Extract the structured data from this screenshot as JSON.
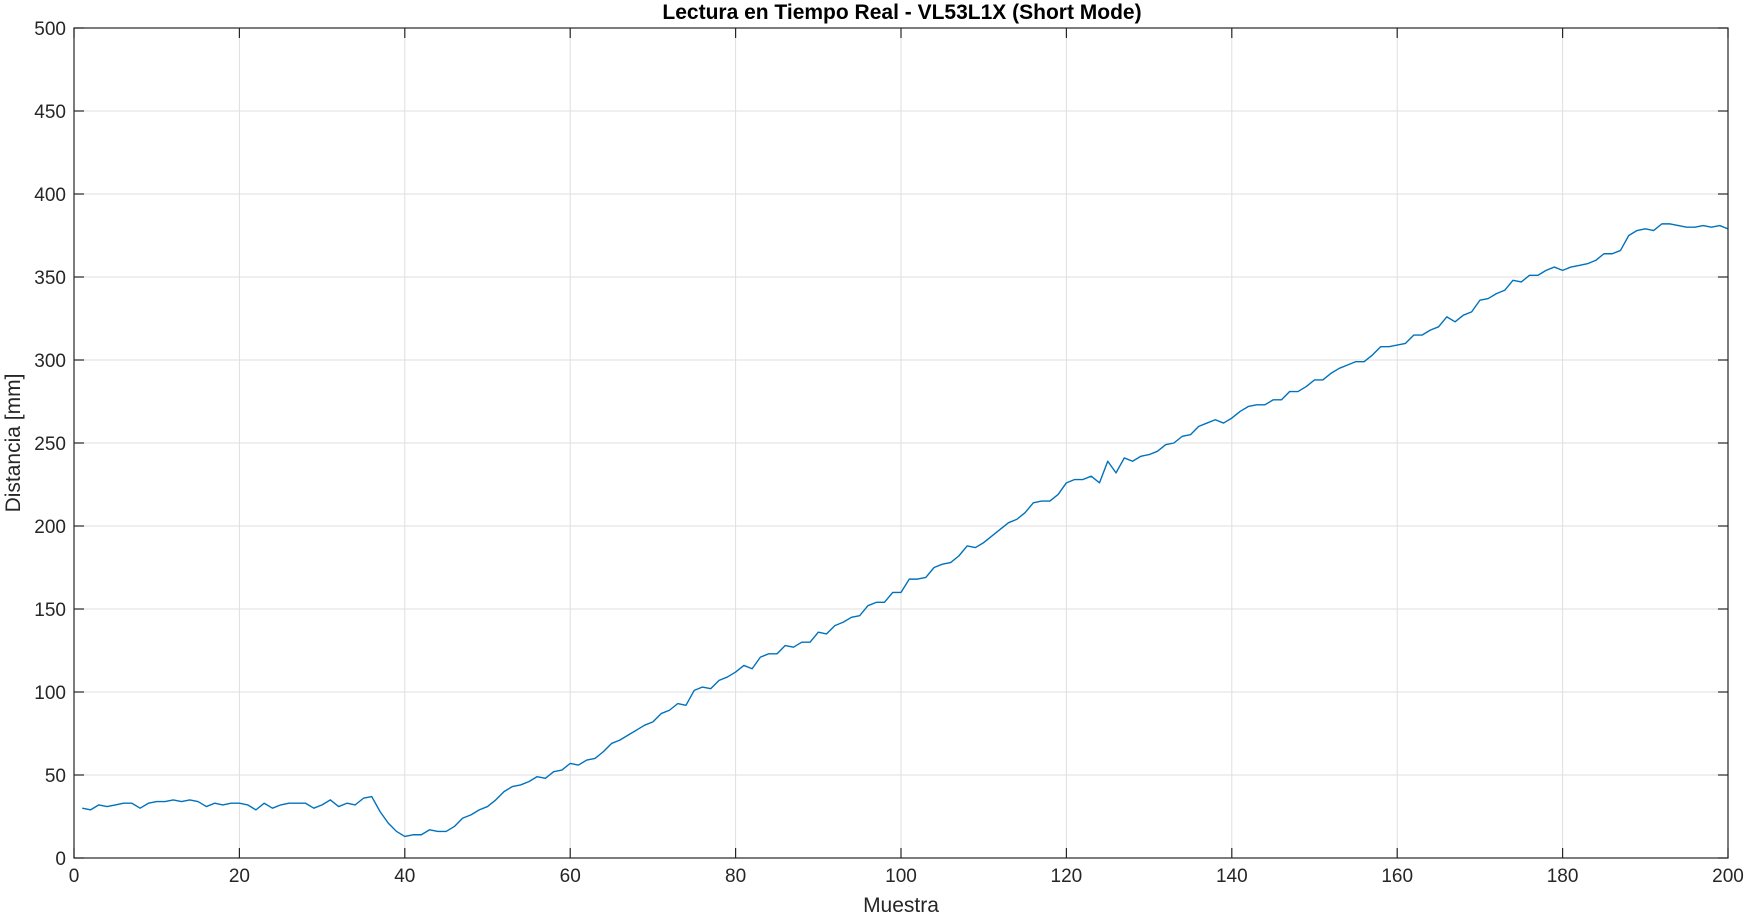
{
  "chart_data": {
    "type": "line",
    "title": "Lectura en Tiempo Real - VL53L1X (Short Mode)",
    "xlabel": "Muestra",
    "ylabel": "Distancia [mm]",
    "xlim": [
      0,
      200
    ],
    "ylim": [
      0,
      500
    ],
    "xticks": [
      0,
      20,
      40,
      60,
      80,
      100,
      120,
      140,
      160,
      180,
      200
    ],
    "yticks": [
      0,
      50,
      100,
      150,
      200,
      250,
      300,
      350,
      400,
      450,
      500
    ],
    "xtick_labels": [
      "0",
      "20",
      "40",
      "60",
      "80",
      "100",
      "120",
      "140",
      "160",
      "180",
      "200"
    ],
    "ytick_labels": [
      "0",
      "50",
      "100",
      "150",
      "200",
      "250",
      "300",
      "350",
      "400",
      "450",
      "500"
    ],
    "grid": true,
    "colors": {
      "series": "#0072BD",
      "grid": "#dfdfdf",
      "axis": "#262626"
    },
    "series": [
      {
        "x": [
          1,
          2,
          3,
          4,
          5,
          6,
          7,
          8,
          9,
          10,
          11,
          12,
          13,
          14,
          15,
          16,
          17,
          18,
          19,
          20,
          21,
          22,
          23,
          24,
          25,
          26,
          27,
          28,
          29,
          30,
          31,
          32,
          33,
          34,
          35,
          36,
          37,
          38,
          39,
          40,
          41,
          42,
          43,
          44,
          45,
          46,
          47,
          48,
          49,
          50,
          51,
          52,
          53,
          54,
          55,
          56,
          57,
          58,
          59,
          60,
          61,
          62,
          63,
          64,
          65,
          66,
          67,
          68,
          69,
          70,
          71,
          72,
          73,
          74,
          75,
          76,
          77,
          78,
          79,
          80,
          81,
          82,
          83,
          84,
          85,
          86,
          87,
          88,
          89,
          90,
          91,
          92,
          93,
          94,
          95,
          96,
          97,
          98,
          99,
          100,
          101,
          102,
          103,
          104,
          105,
          106,
          107,
          108,
          109,
          110,
          111,
          112,
          113,
          114,
          115,
          116,
          117,
          118,
          119,
          120,
          121,
          122,
          123,
          124,
          125,
          126,
          127,
          128,
          129,
          130,
          131,
          132,
          133,
          134,
          135,
          136,
          137,
          138,
          139,
          140,
          141,
          142,
          143,
          144,
          145,
          146,
          147,
          148,
          149,
          150,
          151,
          152,
          153,
          154,
          155,
          156,
          157,
          158,
          159,
          160,
          161,
          162,
          163,
          164,
          165,
          166,
          167,
          168,
          169,
          170,
          171,
          172,
          173,
          174,
          175,
          176,
          177,
          178,
          179,
          180,
          181,
          182,
          183,
          184,
          185,
          186,
          187,
          188,
          189,
          190,
          191,
          192,
          193,
          194,
          195,
          196,
          197,
          198,
          199,
          200
        ],
        "y": [
          30,
          29,
          32,
          31,
          32,
          33,
          33,
          30,
          33,
          34,
          34,
          35,
          34,
          35,
          34,
          31,
          33,
          32,
          33,
          33,
          32,
          29,
          33,
          30,
          32,
          33,
          33,
          33,
          30,
          32,
          35,
          31,
          33,
          32,
          36,
          37,
          28,
          21,
          16,
          13,
          14,
          14,
          17,
          16,
          16,
          19,
          24,
          26,
          29,
          31,
          35,
          40,
          43,
          44,
          46,
          49,
          48,
          52,
          53,
          57,
          56,
          59,
          60,
          64,
          69,
          71,
          74,
          77,
          80,
          82,
          87,
          89,
          93,
          92,
          101,
          103,
          102,
          107,
          109,
          112,
          116,
          114,
          121,
          123,
          123,
          128,
          127,
          130,
          130,
          136,
          135,
          140,
          142,
          145,
          146,
          152,
          154,
          154,
          160,
          160,
          168,
          168,
          169,
          175,
          177,
          178,
          182,
          188,
          187,
          190,
          194,
          198,
          202,
          204,
          208,
          214,
          215,
          215,
          219,
          226,
          228,
          228,
          230,
          226,
          239,
          232,
          241,
          239,
          242,
          243,
          245,
          249,
          250,
          254,
          255,
          260,
          262,
          264,
          262,
          265,
          269,
          272,
          273,
          273,
          276,
          276,
          281,
          281,
          284,
          288,
          288,
          292,
          295,
          297,
          299,
          299,
          303,
          308,
          308,
          309,
          310,
          315,
          315,
          318,
          320,
          326,
          323,
          327,
          329,
          336,
          337,
          340,
          342,
          348,
          347,
          351,
          351,
          354,
          356,
          354,
          356,
          357,
          358,
          360,
          364,
          364,
          366,
          375,
          378,
          379,
          378,
          382,
          382,
          381,
          380,
          380,
          381,
          380,
          381,
          379
        ]
      }
    ]
  }
}
